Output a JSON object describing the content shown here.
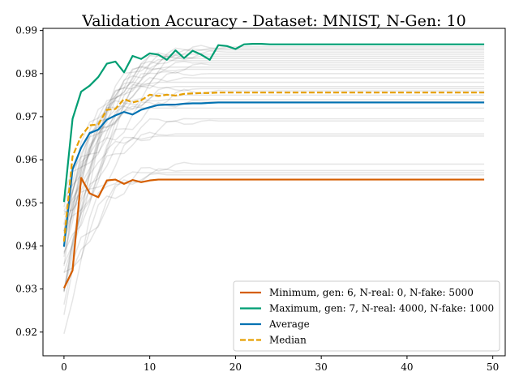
{
  "chart_data": {
    "type": "line",
    "title": "Validation Accuracy - Dataset: MNIST, N-Gen: 10",
    "xlabel": "",
    "ylabel": "",
    "xlim": [
      -2.45,
      51.45
    ],
    "ylim": [
      0.9145,
      0.9905
    ],
    "x_ticks": [
      0,
      10,
      20,
      30,
      40,
      50
    ],
    "y_ticks": [
      0.92,
      0.93,
      0.94,
      0.95,
      0.96,
      0.97,
      0.98,
      0.99
    ],
    "x_tick_labels": [
      "0",
      "10",
      "20",
      "30",
      "40",
      "50"
    ],
    "y_tick_labels": [
      "0.92",
      "0.93",
      "0.94",
      "0.95",
      "0.96",
      "0.97",
      "0.98",
      "0.99"
    ],
    "grid": false,
    "legend_position": "lower-right",
    "series": [
      {
        "name": "Minimum, gen: 6, N-real: 0, N-fake: 5000",
        "color": "#d55e00",
        "style": "solid",
        "x": [
          0,
          1,
          2,
          3,
          4,
          5,
          6,
          7,
          8,
          9,
          10,
          11,
          12,
          13,
          14,
          15,
          16,
          17,
          18,
          19,
          20,
          21,
          22,
          23,
          24,
          25,
          26,
          27,
          28,
          29,
          30,
          31,
          32,
          33,
          34,
          35,
          36,
          37,
          38,
          39,
          40,
          41,
          42,
          43,
          44,
          45,
          46,
          47,
          48,
          49
        ],
        "values": [
          0.9302,
          0.9343,
          0.9558,
          0.9522,
          0.9513,
          0.9552,
          0.9554,
          0.9544,
          0.9553,
          0.9548,
          0.9552,
          0.9554,
          0.9554,
          0.9554,
          0.9554,
          0.9554,
          0.9554,
          0.9554,
          0.9554,
          0.9554,
          0.9554,
          0.9554,
          0.9554,
          0.9554,
          0.9554,
          0.9554,
          0.9554,
          0.9554,
          0.9554,
          0.9554,
          0.9554,
          0.9554,
          0.9554,
          0.9554,
          0.9554,
          0.9554,
          0.9554,
          0.9554,
          0.9554,
          0.9554,
          0.9554,
          0.9554,
          0.9554,
          0.9554,
          0.9554,
          0.9554,
          0.9554,
          0.9554,
          0.9554,
          0.9554
        ]
      },
      {
        "name": "Maximum, gen: 7, N-real: 4000, N-fake: 1000",
        "color": "#009e73",
        "style": "solid",
        "x": [
          0,
          1,
          2,
          3,
          4,
          5,
          6,
          7,
          8,
          9,
          10,
          11,
          12,
          13,
          14,
          15,
          16,
          17,
          18,
          19,
          20,
          21,
          22,
          23,
          24,
          25,
          26,
          27,
          28,
          29,
          30,
          31,
          32,
          33,
          34,
          35,
          36,
          37,
          38,
          39,
          40,
          41,
          42,
          43,
          44,
          45,
          46,
          47,
          48,
          49
        ],
        "values": [
          0.9502,
          0.9695,
          0.9758,
          0.9772,
          0.9792,
          0.9823,
          0.9828,
          0.9803,
          0.9841,
          0.9834,
          0.9847,
          0.9844,
          0.9832,
          0.9854,
          0.9836,
          0.9853,
          0.9844,
          0.9832,
          0.9866,
          0.9864,
          0.9857,
          0.9868,
          0.9869,
          0.9869,
          0.9868,
          0.9868,
          0.9868,
          0.9868,
          0.9868,
          0.9868,
          0.9868,
          0.9868,
          0.9868,
          0.9868,
          0.9868,
          0.9868,
          0.9868,
          0.9868,
          0.9868,
          0.9868,
          0.9868,
          0.9868,
          0.9868,
          0.9868,
          0.9868,
          0.9868,
          0.9868,
          0.9868,
          0.9868,
          0.9868
        ]
      },
      {
        "name": "Average",
        "color": "#0072b2",
        "style": "solid",
        "x": [
          0,
          1,
          2,
          3,
          4,
          5,
          6,
          7,
          8,
          9,
          10,
          11,
          12,
          13,
          14,
          15,
          16,
          17,
          18,
          19,
          20,
          21,
          22,
          23,
          24,
          25,
          26,
          27,
          28,
          29,
          30,
          31,
          32,
          33,
          34,
          35,
          36,
          37,
          38,
          39,
          40,
          41,
          42,
          43,
          44,
          45,
          46,
          47,
          48,
          49
        ],
        "values": [
          0.9398,
          0.9578,
          0.9628,
          0.9662,
          0.967,
          0.9693,
          0.9703,
          0.9711,
          0.9705,
          0.9716,
          0.9722,
          0.9727,
          0.9728,
          0.9728,
          0.973,
          0.9731,
          0.9731,
          0.9732,
          0.9733,
          0.9733,
          0.9733,
          0.9733,
          0.9733,
          0.9733,
          0.9733,
          0.9733,
          0.9733,
          0.9733,
          0.9733,
          0.9733,
          0.9733,
          0.9733,
          0.9733,
          0.9733,
          0.9733,
          0.9733,
          0.9733,
          0.9733,
          0.9733,
          0.9733,
          0.9733,
          0.9733,
          0.9733,
          0.9733,
          0.9733,
          0.9733,
          0.9733,
          0.9733,
          0.9733,
          0.9733
        ]
      },
      {
        "name": "Median",
        "color": "#e69f00",
        "style": "dashed",
        "x": [
          0,
          1,
          2,
          3,
          4,
          5,
          6,
          7,
          8,
          9,
          10,
          11,
          12,
          13,
          14,
          15,
          16,
          17,
          18,
          19,
          20,
          21,
          22,
          23,
          24,
          25,
          26,
          27,
          28,
          29,
          30,
          31,
          32,
          33,
          34,
          35,
          36,
          37,
          38,
          39,
          40,
          41,
          42,
          43,
          44,
          45,
          46,
          47,
          48,
          49
        ],
        "values": [
          0.941,
          0.9608,
          0.9655,
          0.968,
          0.9682,
          0.9716,
          0.9718,
          0.9741,
          0.9733,
          0.9738,
          0.9751,
          0.9748,
          0.9751,
          0.9749,
          0.9753,
          0.9754,
          0.9755,
          0.9755,
          0.9756,
          0.9756,
          0.9756,
          0.9756,
          0.9756,
          0.9756,
          0.9756,
          0.9756,
          0.9756,
          0.9756,
          0.9756,
          0.9756,
          0.9756,
          0.9756,
          0.9756,
          0.9756,
          0.9756,
          0.9756,
          0.9756,
          0.9756,
          0.9756,
          0.9756,
          0.9756,
          0.9756,
          0.9756,
          0.9756,
          0.9756,
          0.9756,
          0.9756,
          0.9756,
          0.9756,
          0.9756
        ]
      }
    ],
    "background_runs": {
      "color": "#000000",
      "opacity": 0.1,
      "start_values": [
        0.924,
        0.9185,
        0.9285,
        0.931,
        0.933,
        0.935,
        0.937,
        0.9385,
        0.94,
        0.9415,
        0.943,
        0.9445,
        0.9455,
        0.9465,
        0.9475,
        0.9485,
        0.9495,
        0.9505,
        0.936,
        0.942,
        0.93,
        0.934,
        0.938,
        0.944,
        0.947,
        0.926,
        0.9325,
        0.9395,
        0.946,
        0.949
      ],
      "final_values": [
        0.9565,
        0.957,
        0.9575,
        0.959,
        0.9655,
        0.966,
        0.969,
        0.9695,
        0.972,
        0.9735,
        0.974,
        0.975,
        0.976,
        0.9765,
        0.977,
        0.978,
        0.979,
        0.98,
        0.981,
        0.9815,
        0.982,
        0.9825,
        0.983,
        0.9835,
        0.984,
        0.9845,
        0.985,
        0.9855,
        0.9858,
        0.9862
      ],
      "plateau_x": [
        12,
        9,
        14,
        16,
        11,
        13,
        18,
        15,
        10,
        17,
        12,
        14,
        19,
        16,
        13,
        11,
        15,
        17,
        14,
        12,
        18,
        16,
        13,
        15,
        17,
        14,
        19,
        16,
        18,
        20
      ]
    }
  }
}
